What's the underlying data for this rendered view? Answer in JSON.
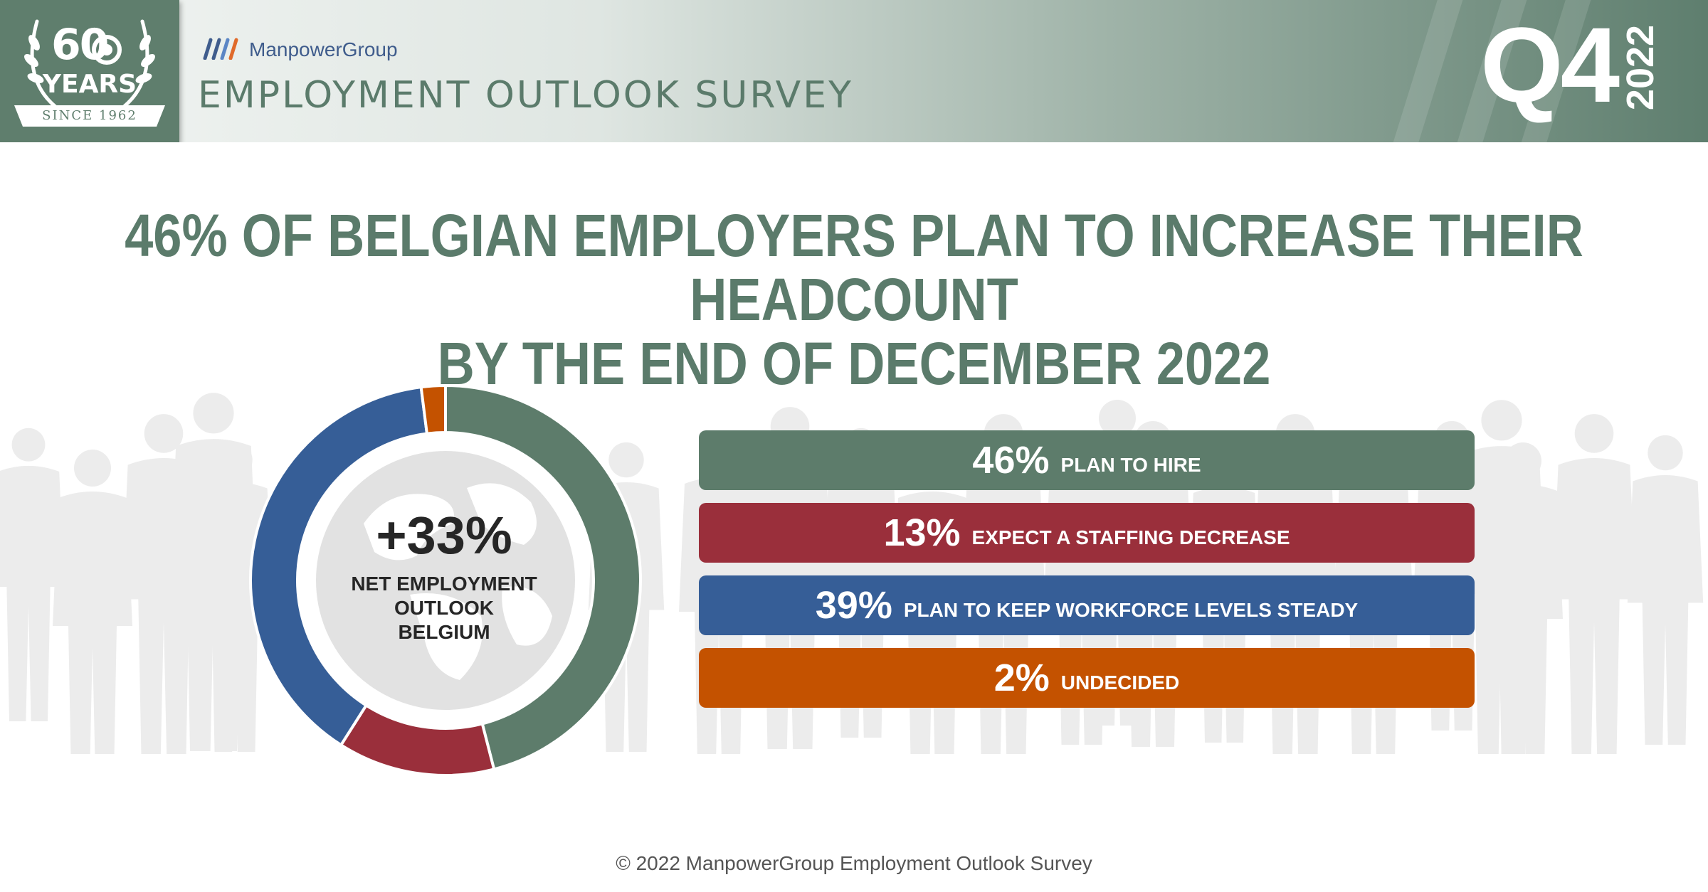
{
  "header": {
    "badge_number": "60",
    "badge_years": "YEARS",
    "badge_since": "SINCE 1962",
    "brand": "ManpowerGroup",
    "survey_title": "EMPLOYMENT OUTLOOK SURVEY",
    "quarter": "Q4",
    "year": "2022"
  },
  "headline": {
    "line1": "46% OF BELGIAN EMPLOYERS PLAN TO INCREASE THEIR HEADCOUNT",
    "line2": "BY THE END OF DECEMBER 2022"
  },
  "center": {
    "value": "+33%",
    "label_line1": "NET EMPLOYMENT",
    "label_line2": "OUTLOOK",
    "label_line3": "BELGIUM"
  },
  "chart_data": {
    "type": "pie",
    "categories": [
      "PLAN TO HIRE",
      "EXPECT A STAFFING DECREASE",
      "PLAN TO KEEP WORKFORCE LEVELS STEADY",
      "UNDECIDED"
    ],
    "values": [
      46,
      13,
      39,
      2
    ],
    "value_labels": [
      "46%",
      "13%",
      "39%",
      "2%"
    ],
    "colors": [
      "#5d7c6b",
      "#9a2f3b",
      "#365e97",
      "#c45200"
    ]
  },
  "footer": "© 2022 ManpowerGroup Employment Outlook Survey"
}
